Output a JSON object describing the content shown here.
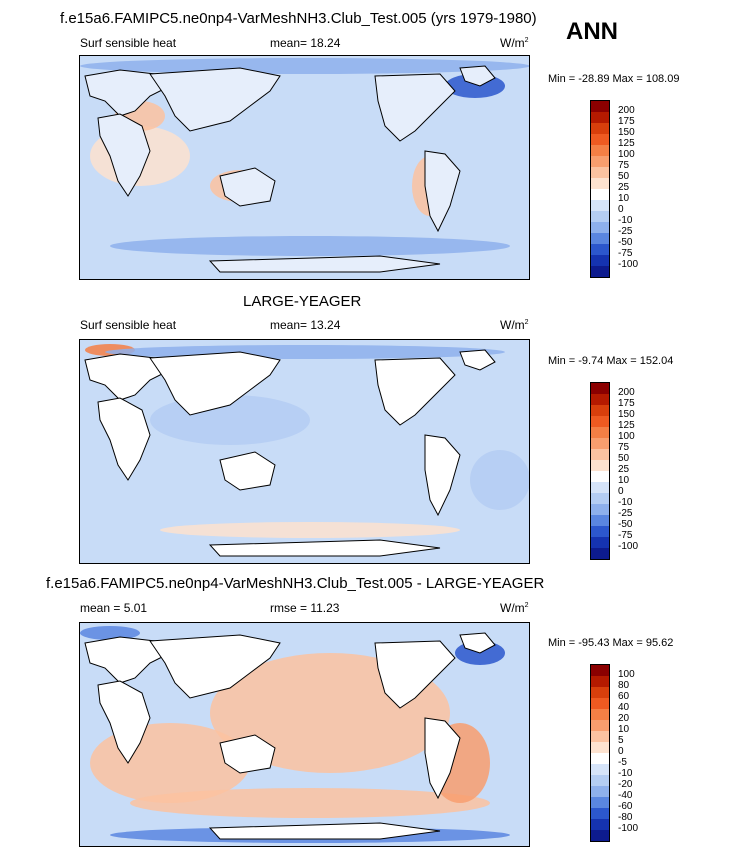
{
  "panels": [
    {
      "title": "f.e15a6.FAMIPC5.ne0np4-VarMeshNH3.Club_Test.005 (yrs 1979-1980)",
      "left_label": "Surf sensible heat",
      "mean_text": "mean=  18.24",
      "units": "W/m",
      "units_exp": "2",
      "min_max": "Min = -28.89 Max = 108.09",
      "colorbar": {
        "levels": [
          "200",
          "175",
          "150",
          "125",
          "100",
          "75",
          "50",
          "25",
          "10",
          "0",
          "-10",
          "-25",
          "-50",
          "-75",
          "-100"
        ],
        "colors": [
          "#8b0000",
          "#b51a00",
          "#d83f0c",
          "#ee5a21",
          "#f47f45",
          "#f89e6e",
          "#fbc2a0",
          "#fde2cf",
          "#ffffff",
          "#d6e4f9",
          "#b4cdf3",
          "#8eb0ec",
          "#5a86e0",
          "#2c57cd",
          "#1533b0",
          "#0d1b8e"
        ]
      },
      "land_land": "#ffffff"
    },
    {
      "title": "LARGE-YEAGER",
      "left_label": "Surf sensible heat",
      "mean_text": "mean=  13.24",
      "units": "W/m",
      "units_exp": "2",
      "min_max": "Min =  -9.74 Max = 152.04",
      "colorbar": {
        "levels": [
          "200",
          "175",
          "150",
          "125",
          "100",
          "75",
          "50",
          "25",
          "10",
          "0",
          "-10",
          "-25",
          "-50",
          "-75",
          "-100"
        ],
        "colors": [
          "#8b0000",
          "#b51a00",
          "#d83f0c",
          "#ee5a21",
          "#f47f45",
          "#f89e6e",
          "#fbc2a0",
          "#fde2cf",
          "#ffffff",
          "#d6e4f9",
          "#b4cdf3",
          "#8eb0ec",
          "#5a86e0",
          "#2c57cd",
          "#1533b0",
          "#0d1b8e"
        ]
      }
    },
    {
      "title": "f.e15a6.FAMIPC5.ne0np4-VarMeshNH3.Club_Test.005 - LARGE-YEAGER",
      "left_label": "mean =   5.01",
      "mean_text": "rmse =  11.23",
      "units": "W/m",
      "units_exp": "2",
      "min_max": "Min = -95.43 Max =  95.62",
      "colorbar": {
        "levels": [
          "100",
          "80",
          "60",
          "40",
          "20",
          "10",
          "5",
          "0",
          "-5",
          "-10",
          "-20",
          "-40",
          "-60",
          "-80",
          "-100"
        ],
        "colors": [
          "#8b0000",
          "#b51a00",
          "#d83f0c",
          "#ee5a21",
          "#f47f45",
          "#f89e6e",
          "#fbc2a0",
          "#fde2cf",
          "#ffffff",
          "#d6e4f9",
          "#b4cdf3",
          "#8eb0ec",
          "#5a86e0",
          "#2c57cd",
          "#1533b0",
          "#0d1b8e"
        ]
      }
    }
  ],
  "season": "ANN",
  "chart_data": [
    {
      "type": "heatmap",
      "title": "f.e15a6.FAMIPC5.ne0np4-VarMeshNH3.Club_Test.005 (yrs 1979-1980)",
      "variable": "Surf sensible heat",
      "mean": 18.24,
      "min": -28.89,
      "max": 108.09,
      "units": "W/m2",
      "levels": [
        -100,
        -75,
        -50,
        -25,
        -10,
        0,
        10,
        25,
        50,
        75,
        100,
        125,
        150,
        175,
        200
      ]
    },
    {
      "type": "heatmap",
      "title": "LARGE-YEAGER",
      "variable": "Surf sensible heat",
      "mean": 13.24,
      "min": -9.74,
      "max": 152.04,
      "units": "W/m2",
      "levels": [
        -100,
        -75,
        -50,
        -25,
        -10,
        0,
        10,
        25,
        50,
        75,
        100,
        125,
        150,
        175,
        200
      ]
    },
    {
      "type": "heatmap",
      "title": "f.e15a6.FAMIPC5.ne0np4-VarMeshNH3.Club_Test.005 - LARGE-YEAGER",
      "mean": 5.01,
      "rmse": 11.23,
      "min": -95.43,
      "max": 95.62,
      "units": "W/m2",
      "levels": [
        -100,
        -80,
        -60,
        -40,
        -20,
        -10,
        -5,
        0,
        5,
        10,
        20,
        40,
        60,
        80,
        100
      ]
    }
  ]
}
